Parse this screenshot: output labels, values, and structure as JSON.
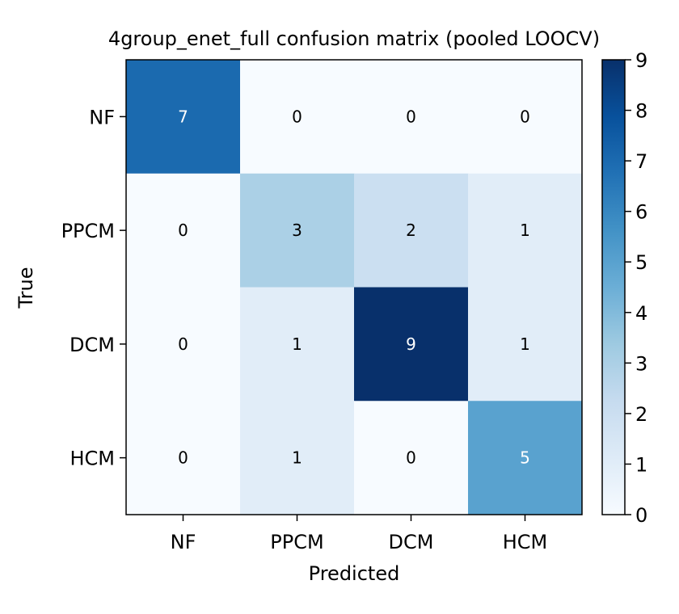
{
  "chart_data": {
    "type": "heatmap",
    "title": "4group_enet_full confusion matrix (pooled LOOCV)",
    "xlabel": "Predicted",
    "ylabel": "True",
    "x_categories": [
      "NF",
      "PPCM",
      "DCM",
      "HCM"
    ],
    "y_categories": [
      "NF",
      "PPCM",
      "DCM",
      "HCM"
    ],
    "matrix": [
      [
        7,
        0,
        0,
        0
      ],
      [
        0,
        3,
        2,
        1
      ],
      [
        0,
        1,
        9,
        1
      ],
      [
        0,
        1,
        0,
        5
      ]
    ],
    "colormap": "Blues",
    "vmin": 0,
    "vmax": 9,
    "colorbar_ticks": [
      0,
      1,
      2,
      3,
      4,
      5,
      6,
      7,
      8,
      9
    ],
    "colors": {
      "low": "#f7fbff",
      "high": "#08306b",
      "label_light": "#ffffff",
      "label_dark": "#000000"
    }
  }
}
